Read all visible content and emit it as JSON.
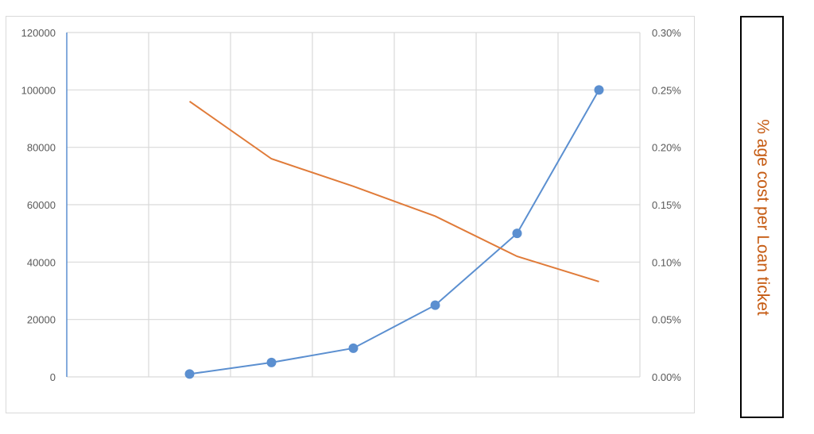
{
  "chart_data": {
    "type": "line",
    "title": "",
    "categories": [
      "",
      "",
      "",
      "",
      "",
      "",
      ""
    ],
    "y_left": {
      "range": [
        0,
        120000
      ],
      "ticks": [
        "0",
        "20000",
        "40000",
        "60000",
        "80000",
        "100000",
        "120000"
      ]
    },
    "y_right": {
      "range": [
        0,
        0.3
      ],
      "unit": "%",
      "ticks": [
        "0.00%",
        "0.05%",
        "0.10%",
        "0.15%",
        "0.20%",
        "0.25%",
        "0.30%"
      ],
      "label": "% age cost per Loan ticket"
    },
    "grid": true,
    "series": [
      {
        "axis": "left",
        "color": "#5b8fd0",
        "markers": true,
        "values": [
          null,
          1000,
          5000,
          10000,
          25000,
          50000,
          100000
        ]
      },
      {
        "axis": "right",
        "color": "#e07b39",
        "markers": false,
        "values": [
          null,
          0.24,
          0.19,
          0.166,
          0.14,
          0.105,
          0.083
        ]
      }
    ]
  }
}
